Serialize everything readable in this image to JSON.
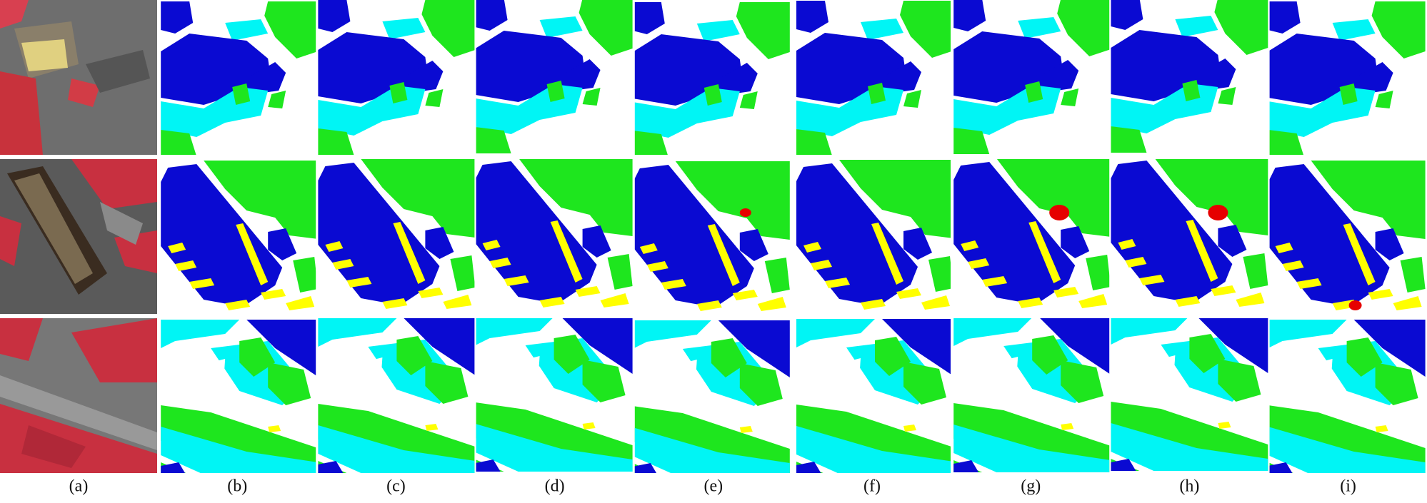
{
  "figure": {
    "panel_labels": [
      "(a)",
      "(b)",
      "(c)",
      "(d)",
      "(e)",
      "(f)",
      "(g)",
      "(h)",
      "(i)"
    ]
  }
}
